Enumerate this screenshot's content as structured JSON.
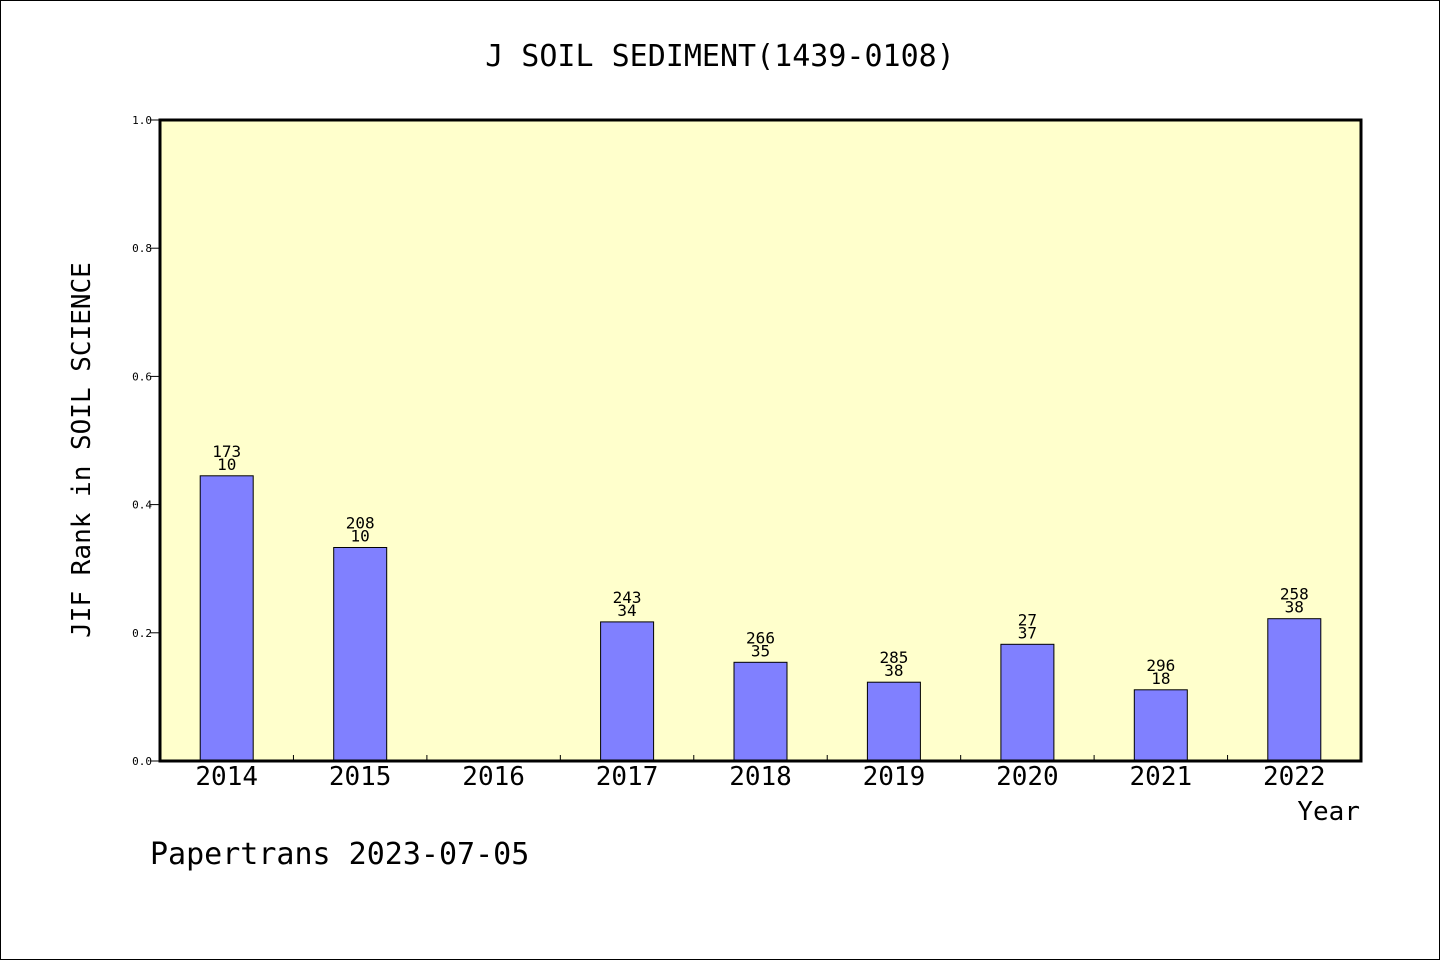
{
  "chart_data": {
    "type": "bar",
    "title": "J SOIL SEDIMENT(1439-0108)",
    "xlabel": "Year",
    "ylabel": "JIF Rank in SOIL SCIENCE",
    "categories": [
      "2014",
      "2015",
      "2016",
      "2017",
      "2018",
      "2019",
      "2020",
      "2021",
      "2022"
    ],
    "values": [
      0.445,
      0.333,
      null,
      0.217,
      0.154,
      0.123,
      0.182,
      0.111,
      0.222
    ],
    "labels_top": [
      "173",
      "208",
      "",
      "243",
      "266",
      "285",
      "27",
      "296",
      "258"
    ],
    "labels_bottom": [
      "10",
      "10",
      "",
      "34",
      "35",
      "38",
      "37",
      "18",
      "38"
    ],
    "ylim": [
      0,
      1.0
    ],
    "yticks": [
      "0.0",
      "0.2",
      "0.4",
      "0.6",
      "0.8",
      "1.0"
    ],
    "grid": false,
    "colors": {
      "plot_background": "#ffffcc",
      "bar_fill": "#8080ff",
      "bar_stroke": "#000000"
    }
  },
  "footer": {
    "text": "Papertrans 2023-07-05"
  }
}
